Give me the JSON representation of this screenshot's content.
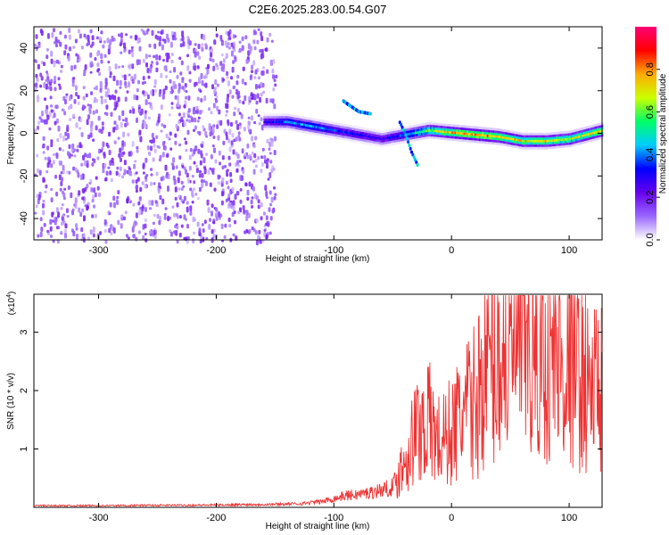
{
  "figure_title": "C2E6.2025.283.00.54.G07",
  "chart_data": [
    {
      "type": "heatmap",
      "title": "C2E6.2025.283.00.54.G07",
      "xlabel": "Height of straight line (km)",
      "ylabel": "Frequency (Hz)",
      "xlim": [
        -355,
        128
      ],
      "ylim": [
        -50,
        50
      ],
      "xticks": [
        -300,
        -200,
        -100,
        0,
        100
      ],
      "yticks": [
        -40,
        -20,
        0,
        20,
        40
      ],
      "colorbar": {
        "label": "Normalized spectral amplitude",
        "range": [
          0,
          1
        ],
        "ticks": [
          0.0,
          0.2,
          0.4,
          0.6,
          0.8
        ],
        "colormap": [
          "#ffffff",
          "#9966ff",
          "#6600ee",
          "#0000ff",
          "#00ccff",
          "#00ff66",
          "#ccff00",
          "#ffaa00",
          "#ff0000",
          "#ff0077"
        ]
      },
      "noise_region": {
        "x_from": -355,
        "x_to": -150,
        "amplitude": 0.15
      },
      "signal_trace": {
        "x": [
          -160,
          -140,
          -120,
          -100,
          -80,
          -60,
          -40,
          -20,
          0,
          20,
          40,
          60,
          80,
          100,
          128
        ],
        "y": [
          6,
          6,
          4,
          2,
          0,
          -2,
          0,
          2,
          1,
          0,
          -1,
          -3,
          -3,
          -2,
          2
        ],
        "amplitude": [
          0.3,
          0.45,
          0.5,
          0.4,
          0.35,
          0.3,
          0.45,
          0.7,
          0.85,
          0.9,
          0.85,
          0.8,
          0.8,
          0.75,
          0.8
        ]
      },
      "secondary_features": [
        {
          "x": [
            -93,
            -88,
            -80,
            -70
          ],
          "y": [
            16,
            14,
            11,
            10
          ]
        },
        {
          "x": [
            -45,
            -40,
            -35,
            -30
          ],
          "y": [
            6,
            0,
            -8,
            -14
          ]
        }
      ]
    },
    {
      "type": "line",
      "xlabel": "Height of straight line (km)",
      "ylabel": "SNR (10 * v/v)",
      "y_multiplier_label": "(x10",
      "y_multiplier_exp": "4",
      "y_multiplier_close": ")",
      "xlim": [
        -355,
        128
      ],
      "ylim": [
        0,
        3.65
      ],
      "xticks": [
        -300,
        -200,
        -100,
        0,
        100
      ],
      "yticks": [
        1,
        2,
        3
      ],
      "series": [
        {
          "name": "SNR",
          "color": "#ee3333",
          "x": [
            -355,
            -300,
            -200,
            -130,
            -110,
            -100,
            -90,
            -80,
            -70,
            -60,
            -50,
            -40,
            -30,
            -20,
            -10,
            0,
            10,
            20,
            30,
            40,
            50,
            60,
            70,
            80,
            90,
            100,
            110,
            120,
            128
          ],
          "y": [
            0.03,
            0.03,
            0.04,
            0.06,
            0.1,
            0.15,
            0.2,
            0.22,
            0.25,
            0.3,
            0.35,
            0.8,
            1.3,
            1.5,
            1.1,
            1.3,
            1.6,
            1.8,
            2.4,
            2.6,
            2.7,
            2.9,
            2.5,
            2.6,
            2.5,
            2.5,
            2.3,
            2.0,
            2.2
          ]
        }
      ]
    }
  ]
}
